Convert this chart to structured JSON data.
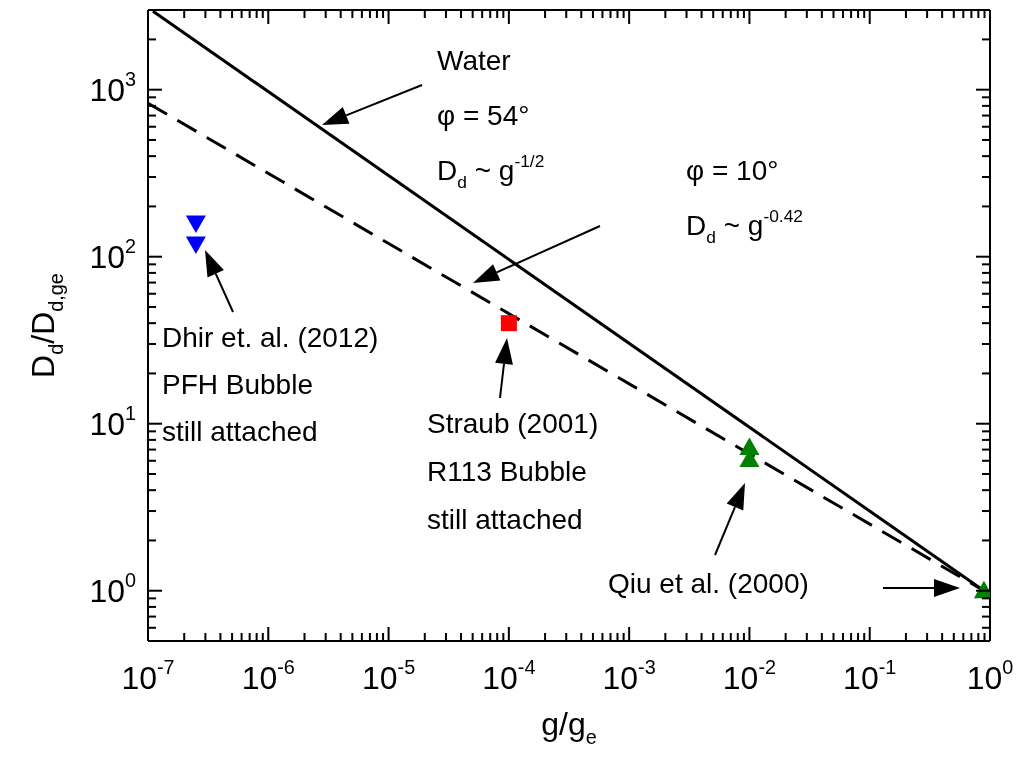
{
  "chart_data": {
    "type": "scatter",
    "xlabel": "g/g$_{e}$",
    "ylabel": "D$_{d}$/D$_{d,g}$$_{e}$",
    "log": "xy",
    "xlim": [
      1e-07,
      1
    ],
    "ylim": [
      0.5,
      3000
    ],
    "xticks": [
      {
        "value": 1e-07,
        "label": "10$^{-7}$"
      },
      {
        "value": 2e-07,
        "label": null
      },
      {
        "value": 3e-07,
        "label": null
      },
      {
        "value": 4e-07,
        "label": null
      },
      {
        "value": 5e-07,
        "label": null
      },
      {
        "value": 6e-07,
        "label": null
      },
      {
        "value": 7e-07,
        "label": null
      },
      {
        "value": 8e-07,
        "label": null
      },
      {
        "value": 9e-07,
        "label": null
      },
      {
        "value": 1e-06,
        "label": "10$^{-6}$"
      },
      {
        "value": 2e-06,
        "label": null
      },
      {
        "value": 3e-06,
        "label": null
      },
      {
        "value": 4e-06,
        "label": null
      },
      {
        "value": 5e-06,
        "label": null
      },
      {
        "value": 6e-06,
        "label": null
      },
      {
        "value": 7e-06,
        "label": null
      },
      {
        "value": 8e-06,
        "label": null
      },
      {
        "value": 9e-06,
        "label": null
      },
      {
        "value": 1e-05,
        "label": "10$^{-5}$"
      },
      {
        "value": 2e-05,
        "label": null
      },
      {
        "value": 3e-05,
        "label": null
      },
      {
        "value": 4e-05,
        "label": null
      },
      {
        "value": 5e-05,
        "label": null
      },
      {
        "value": 6e-05,
        "label": null
      },
      {
        "value": 7e-05,
        "label": null
      },
      {
        "value": 8e-05,
        "label": null
      },
      {
        "value": 9e-05,
        "label": null
      },
      {
        "value": 0.0001,
        "label": "10$^{-4}$"
      },
      {
        "value": 0.0002,
        "label": null
      },
      {
        "value": 0.0003,
        "label": null
      },
      {
        "value": 0.0004,
        "label": null
      },
      {
        "value": 0.0005,
        "label": null
      },
      {
        "value": 0.0006,
        "label": null
      },
      {
        "value": 0.0007,
        "label": null
      },
      {
        "value": 0.0008,
        "label": null
      },
      {
        "value": 0.0009,
        "label": null
      },
      {
        "value": 0.001,
        "label": "10$^{-3}$"
      },
      {
        "value": 0.002,
        "label": null
      },
      {
        "value": 0.003,
        "label": null
      },
      {
        "value": 0.004,
        "label": null
      },
      {
        "value": 0.005,
        "label": null
      },
      {
        "value": 0.006,
        "label": null
      },
      {
        "value": 0.007,
        "label": null
      },
      {
        "value": 0.008,
        "label": null
      },
      {
        "value": 0.009,
        "label": null
      },
      {
        "value": 0.01,
        "label": "10$^{-2}$"
      },
      {
        "value": 0.02,
        "label": null
      },
      {
        "value": 0.03,
        "label": null
      },
      {
        "value": 0.04,
        "label": null
      },
      {
        "value": 0.05,
        "label": null
      },
      {
        "value": 0.06,
        "label": null
      },
      {
        "value": 0.07,
        "label": null
      },
      {
        "value": 0.08,
        "label": null
      },
      {
        "value": 0.09,
        "label": null
      },
      {
        "value": 0.1,
        "label": "10$^{-1}$"
      },
      {
        "value": 0.2,
        "label": null
      },
      {
        "value": 0.3,
        "label": null
      },
      {
        "value": 0.4,
        "label": null
      },
      {
        "value": 0.5,
        "label": null
      },
      {
        "value": 0.6,
        "label": null
      },
      {
        "value": 0.7,
        "label": null
      },
      {
        "value": 0.8,
        "label": null
      },
      {
        "value": 0.9,
        "label": null
      },
      {
        "value": 1,
        "label": "10$^{0}$"
      }
    ],
    "yticks": [
      {
        "value": 0.5,
        "label": null
      },
      {
        "value": 0.6,
        "label": null
      },
      {
        "value": 0.7,
        "label": null
      },
      {
        "value": 0.8,
        "label": null
      },
      {
        "value": 0.9,
        "label": null
      },
      {
        "value": 1,
        "label": "10$^{0}$"
      },
      {
        "value": 2,
        "label": null
      },
      {
        "value": 3,
        "label": null
      },
      {
        "value": 4,
        "label": null
      },
      {
        "value": 5,
        "label": null
      },
      {
        "value": 6,
        "label": null
      },
      {
        "value": 7,
        "label": null
      },
      {
        "value": 8,
        "label": null
      },
      {
        "value": 9,
        "label": null
      },
      {
        "value": 10,
        "label": "10$^{1}$"
      },
      {
        "value": 20,
        "label": null
      },
      {
        "value": 30,
        "label": null
      },
      {
        "value": 40,
        "label": null
      },
      {
        "value": 50,
        "label": null
      },
      {
        "value": 60,
        "label": null
      },
      {
        "value": 70,
        "label": null
      },
      {
        "value": 80,
        "label": null
      },
      {
        "value": 90,
        "label": null
      },
      {
        "value": 100,
        "label": "10$^{2}$"
      },
      {
        "value": 200,
        "label": null
      },
      {
        "value": 300,
        "label": null
      },
      {
        "value": 400,
        "label": null
      },
      {
        "value": 500,
        "label": null
      },
      {
        "value": 600,
        "label": null
      },
      {
        "value": 700,
        "label": null
      },
      {
        "value": 800,
        "label": null
      },
      {
        "value": 900,
        "label": null
      },
      {
        "value": 1000,
        "label": "10$^{3}$"
      },
      {
        "value": 2000,
        "label": null
      },
      {
        "value": 3000,
        "label": null
      }
    ],
    "series": [
      {
        "type": "line",
        "color": "#000000",
        "line_style": "solid",
        "marker": "none",
        "x": [
          1.1e-07,
          0.89
        ],
        "values": [
          2950,
          1
        ]
      },
      {
        "type": "line",
        "color": "#000000",
        "line_style": "dashed",
        "marker": "none",
        "x": [
          1e-07,
          0.89
        ],
        "values": [
          830,
          1
        ]
      },
      {
        "color": "#0000ff",
        "marker": "triangle-down",
        "x": [
          2.5e-07,
          2.5e-07
        ],
        "values": [
          159,
          119
        ]
      },
      {
        "color": "#ff0000",
        "marker": "square",
        "x": [
          0.0001
        ],
        "values": [
          40
        ]
      },
      {
        "color": "#008000",
        "marker": "triangle",
        "x": [
          0.01,
          0.01,
          0.89
        ],
        "values": [
          7.2,
          6.1,
          1
        ]
      }
    ],
    "annotations": [
      "Water\nφ = 54°\nD$_{d}$ ~ g$^{-1/2}$",
      "φ = 10°\nD$_{d}$ ~ g$^{-0.42}$",
      "Dhir et. al. (2012)\nPFH Bubble\nstill attached",
      "Straub (2001)\nR113 Bubble\nstill attached",
      "Qiu et al. (2000)"
    ]
  }
}
